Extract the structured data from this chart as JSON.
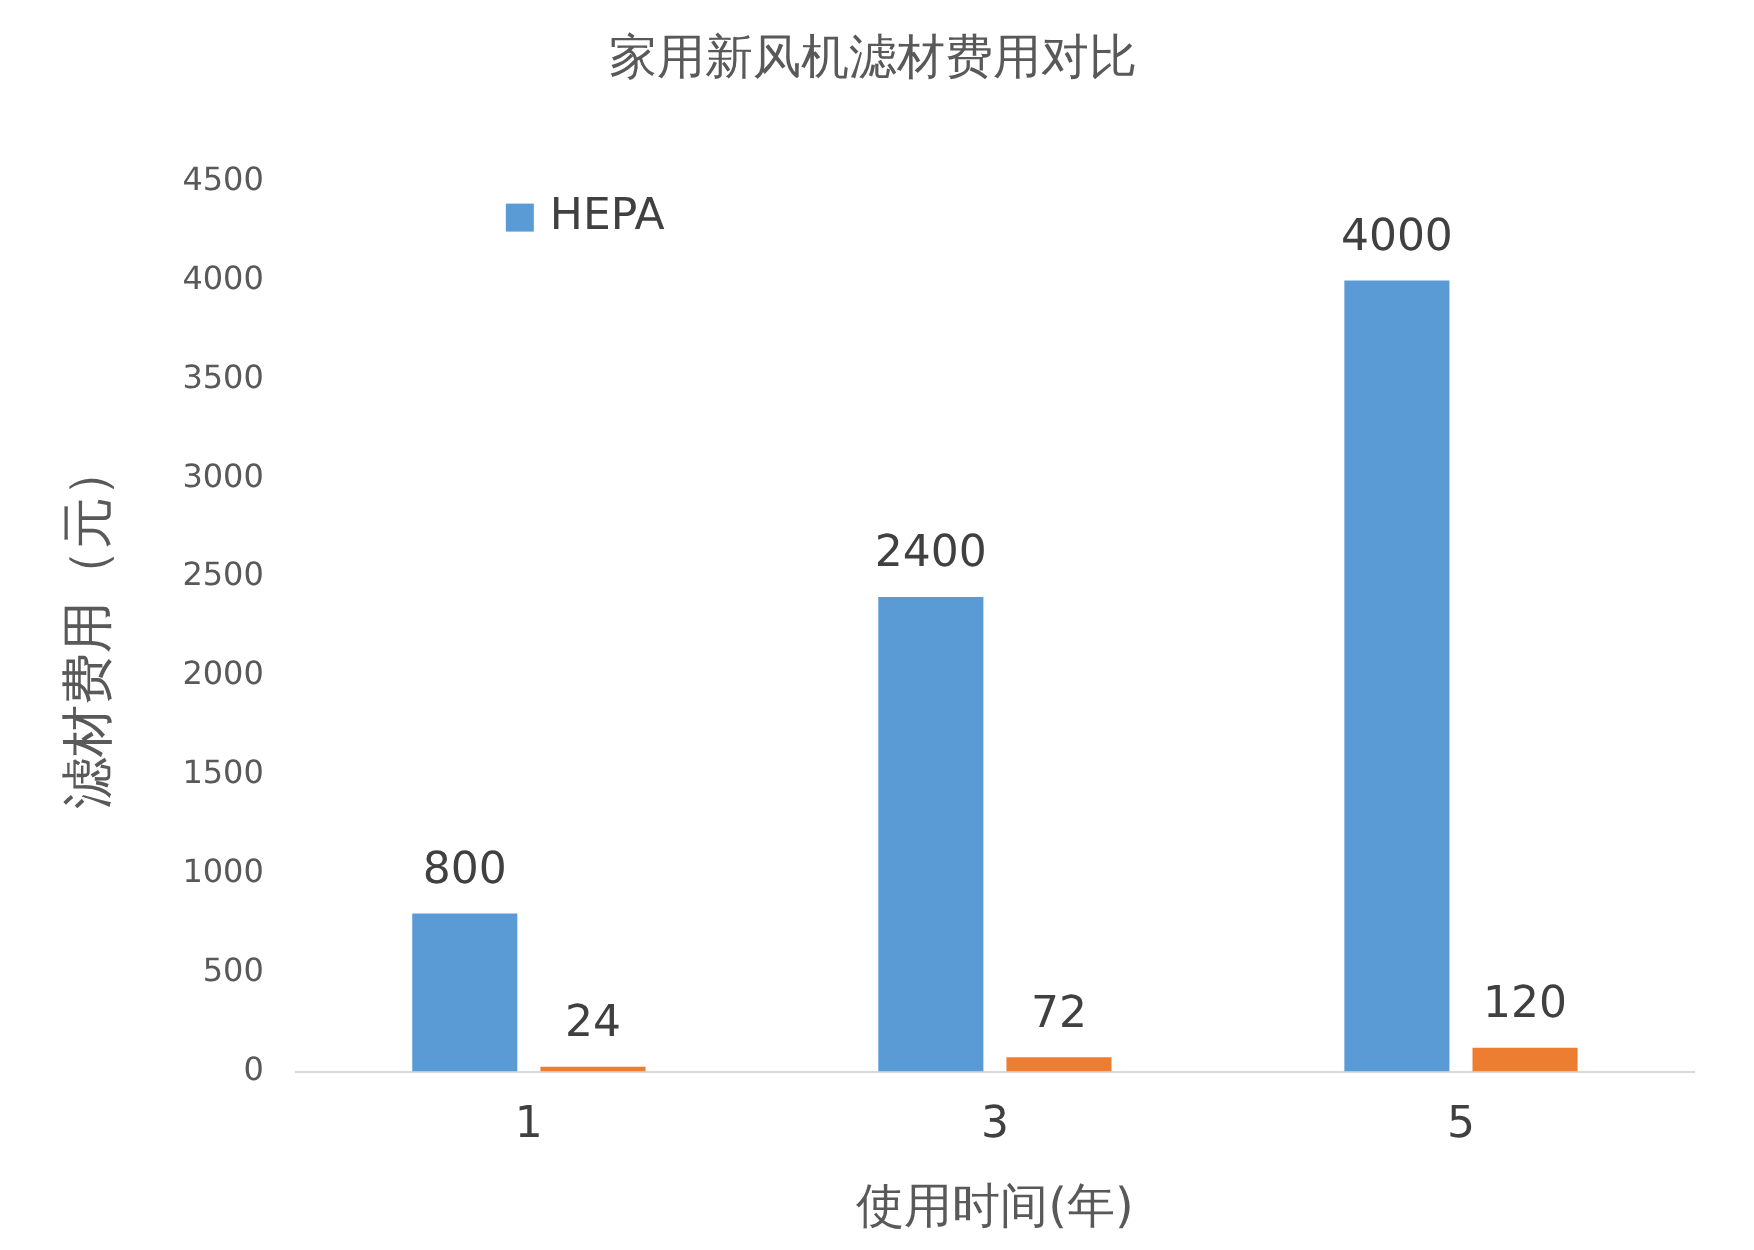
{
  "chart_data": {
    "type": "bar",
    "title": "家用新风机滤材费用对比",
    "xlabel": "使用时间(年)",
    "ylabel": "滤材费用（元）",
    "categories": [
      "1",
      "3",
      "5"
    ],
    "series": [
      {
        "name": "HEPA",
        "color": "#5b9bd5",
        "values": [
          800,
          2400,
          4000
        ]
      },
      {
        "color": "#ed7d31",
        "values": [
          24,
          72,
          120
        ]
      }
    ],
    "ylim": [
      0,
      4500
    ],
    "yticks": [
      0,
      500,
      1000,
      1500,
      2000,
      2500,
      3000,
      3500,
      4000,
      4500
    ],
    "legend": "top",
    "data_labels": true
  }
}
